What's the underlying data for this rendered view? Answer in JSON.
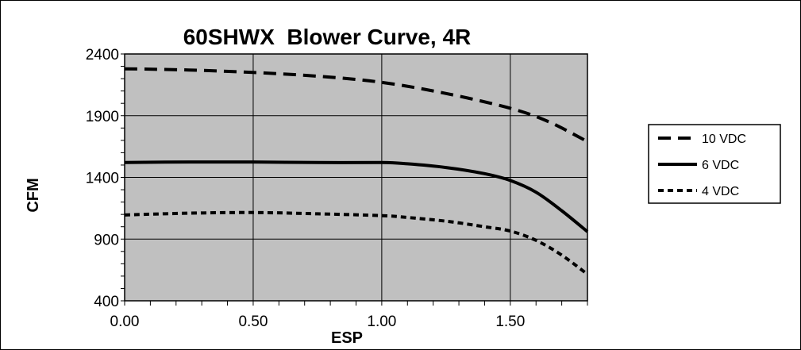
{
  "chart_data": {
    "type": "line",
    "title": "60SHWX  Blower Curve, 4R",
    "xlabel": "ESP",
    "ylabel": "CFM",
    "xlim": [
      0,
      1.8
    ],
    "ylim": [
      400,
      2400
    ],
    "xticks": [
      "0.00",
      "0.50",
      "1.00",
      "1.50"
    ],
    "yticks": [
      "400",
      "900",
      "1400",
      "1900",
      "2400"
    ],
    "grid": true,
    "plot_background": "#c0c0c0",
    "legend_position": "right",
    "series": [
      {
        "name": "10 VDC",
        "dash": "long-dash",
        "x": [
          0,
          0.25,
          0.5,
          0.75,
          1.0,
          1.25,
          1.5,
          1.65,
          1.8
        ],
        "y": [
          2280,
          2270,
          2250,
          2220,
          2170,
          2080,
          1960,
          1850,
          1690
        ]
      },
      {
        "name": "6 VDC",
        "dash": "solid",
        "x": [
          0,
          0.25,
          0.5,
          0.75,
          1.0,
          1.1,
          1.25,
          1.4,
          1.5,
          1.6,
          1.7,
          1.8
        ],
        "y": [
          1520,
          1525,
          1525,
          1520,
          1520,
          1510,
          1480,
          1430,
          1375,
          1280,
          1130,
          960
        ]
      },
      {
        "name": "4 VDC",
        "dash": "short-dash",
        "x": [
          0,
          0.25,
          0.5,
          0.75,
          1.0,
          1.1,
          1.25,
          1.4,
          1.5,
          1.6,
          1.7,
          1.8
        ],
        "y": [
          1095,
          1110,
          1115,
          1105,
          1090,
          1075,
          1045,
          1000,
          965,
          890,
          770,
          615
        ]
      }
    ]
  }
}
